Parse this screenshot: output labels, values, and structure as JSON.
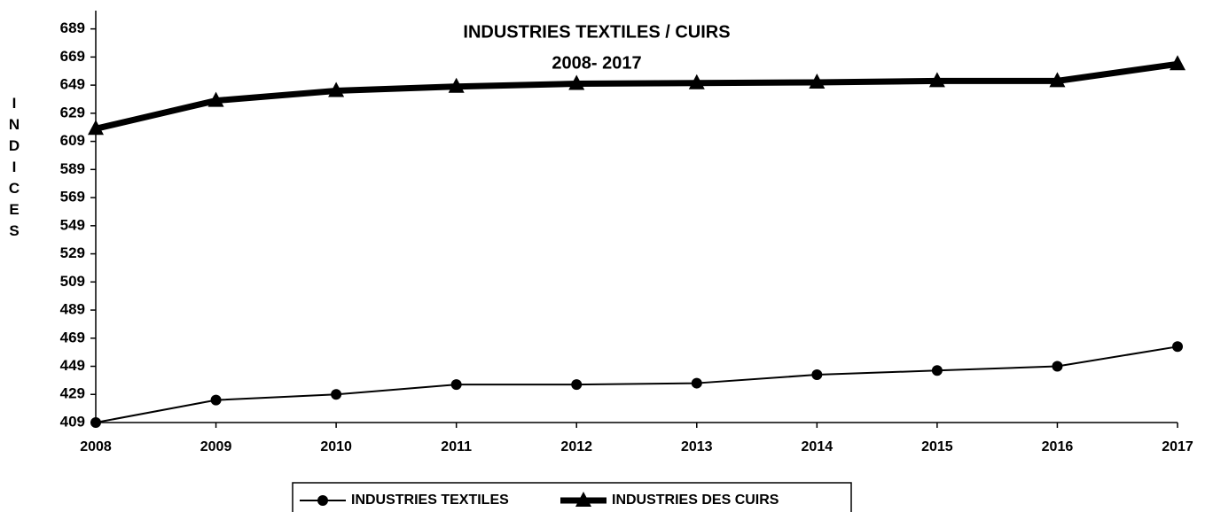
{
  "chart_data": {
    "type": "line",
    "title": "INDUSTRIES TEXTILES / CUIRS",
    "subtitle": "2008- 2017",
    "y_label": "INDICES",
    "categories": [
      "2008",
      "2009",
      "2010",
      "2011",
      "2012",
      "2013",
      "2014",
      "2015",
      "2016",
      "2017"
    ],
    "series": [
      {
        "name": "INDUSTRIES TEXTILES",
        "color": "#000000",
        "marker": "circle",
        "width": 2,
        "values": [
          409,
          425,
          429,
          436,
          436,
          437,
          443,
          446,
          449,
          463
        ]
      },
      {
        "name": "INDUSTRIES DES CUIRS",
        "color": "#000000",
        "marker": "triangle",
        "width": 7,
        "values": [
          618,
          638,
          645,
          648,
          650,
          650.5,
          651,
          652,
          652,
          664
        ]
      }
    ],
    "ylim": [
      409,
      702
    ],
    "yticks": [
      409,
      429,
      449,
      469,
      489,
      509,
      529,
      549,
      569,
      589,
      609,
      629,
      649,
      669,
      689
    ],
    "legend": "bottom"
  }
}
